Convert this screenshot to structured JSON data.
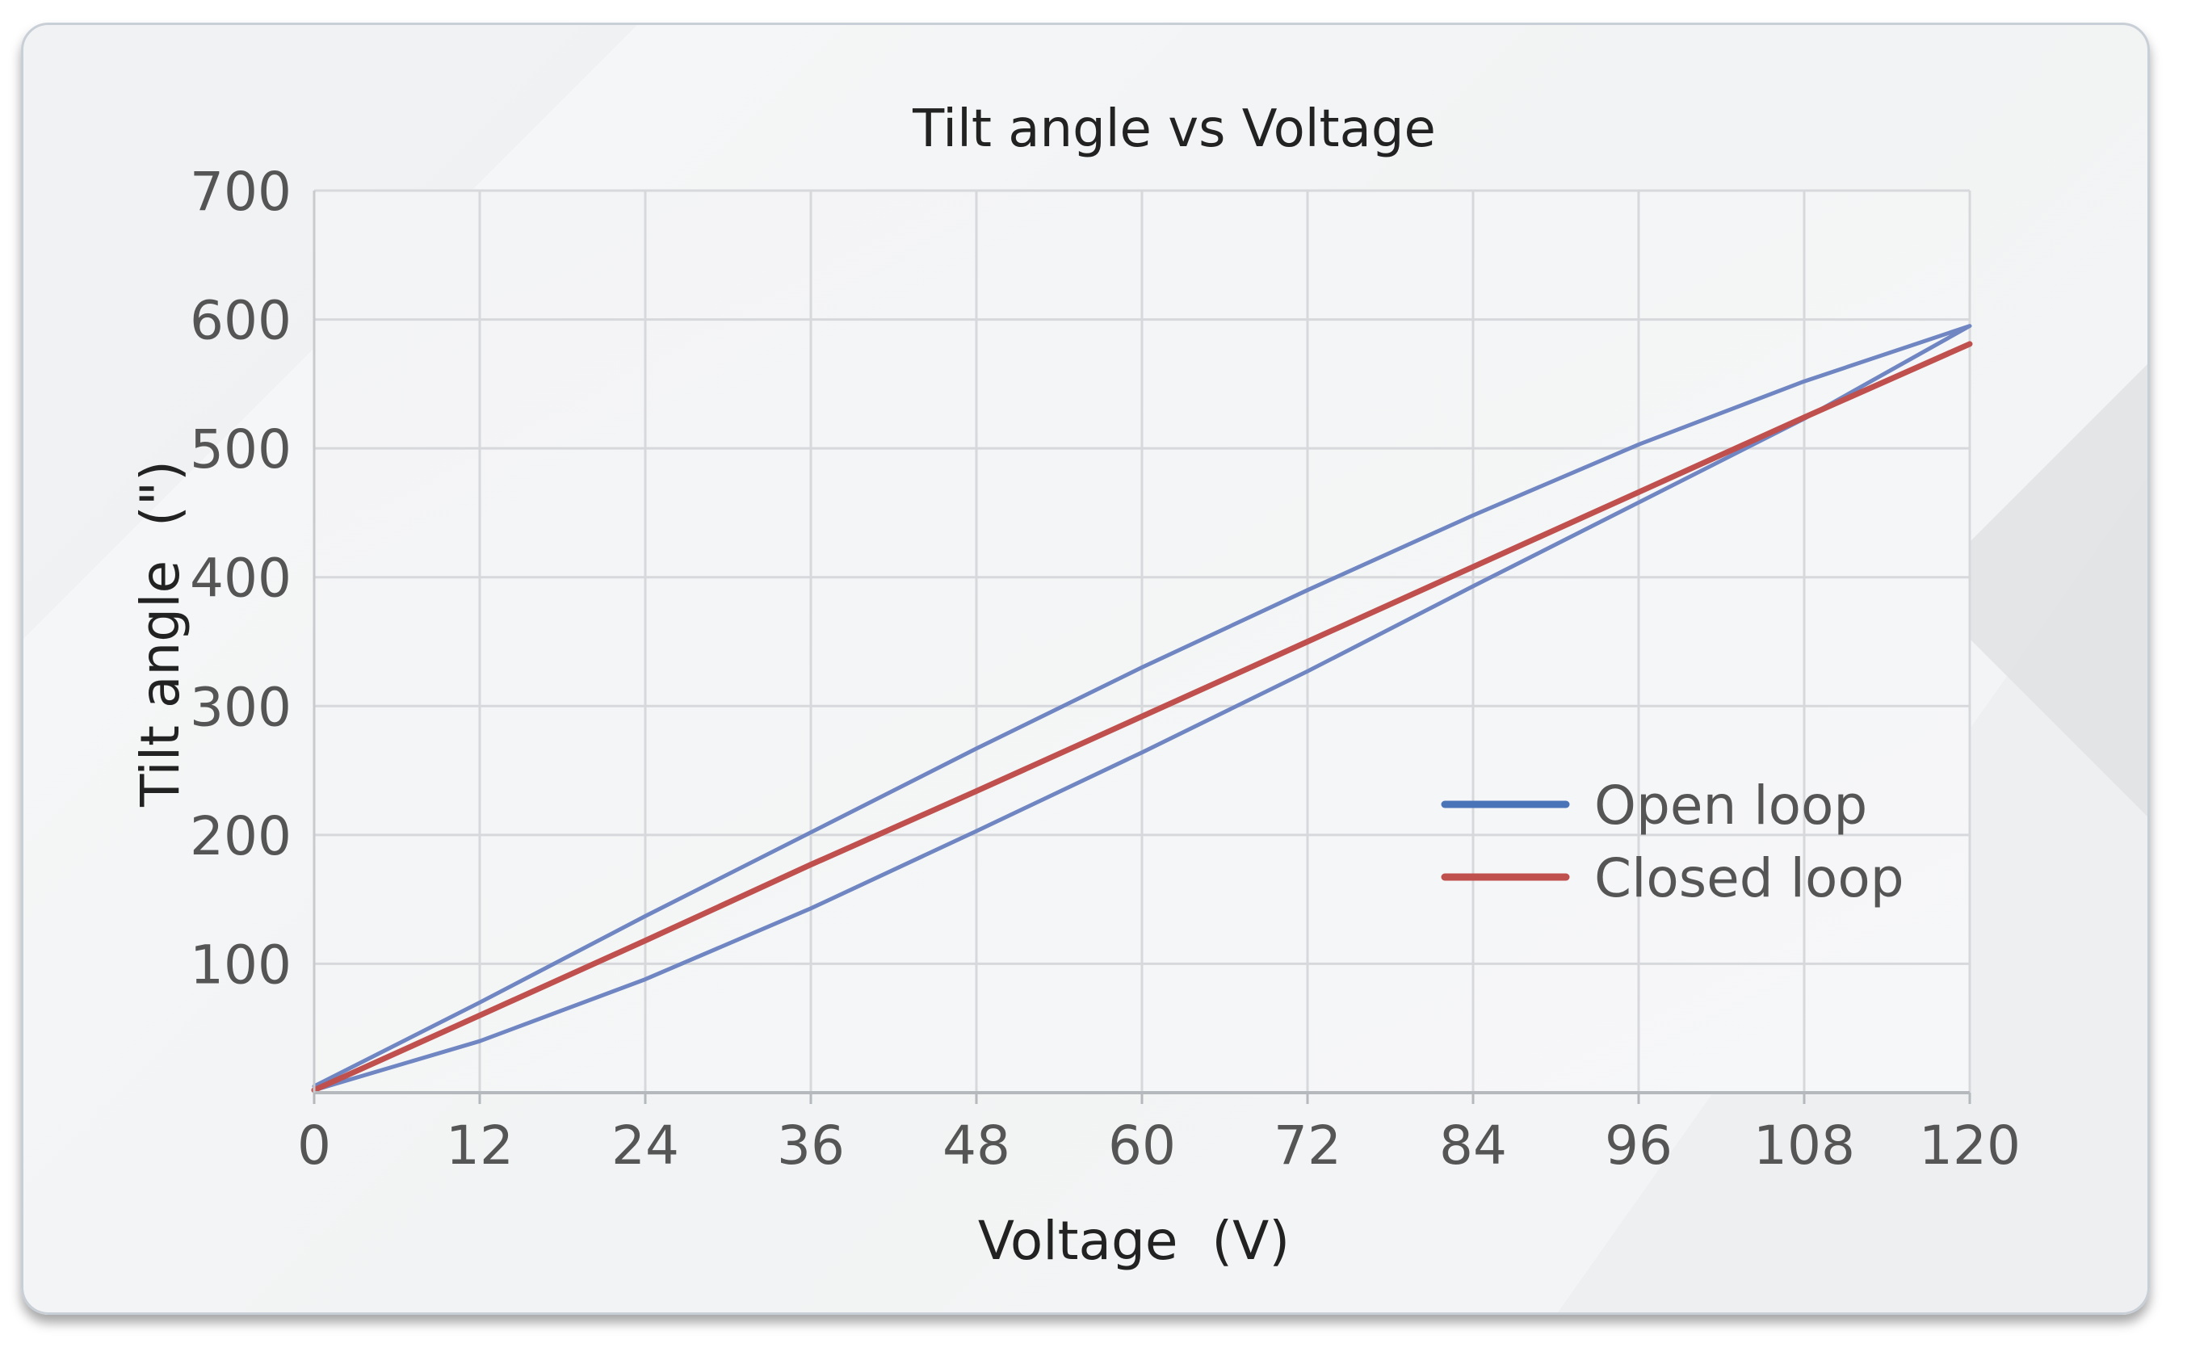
{
  "chart_data": {
    "type": "line",
    "title": "Tilt angle vs Voltage",
    "xlabel": "Voltage  (V)",
    "ylabel": "Tilt angle  (\")",
    "xlim": [
      0,
      120
    ],
    "ylim": [
      0,
      700
    ],
    "xticks": [
      0,
      12,
      24,
      36,
      48,
      60,
      72,
      84,
      96,
      108,
      120
    ],
    "yticks": [
      100,
      200,
      300,
      400,
      500,
      600,
      700
    ],
    "grid": true,
    "legend_position": "bottom-right",
    "series": [
      {
        "name": "Open loop",
        "color": "#6f86c2",
        "legend_color": "#4a74b8",
        "points": [
          [
            0,
            5
          ],
          [
            12,
            70
          ],
          [
            24,
            137
          ],
          [
            36,
            202
          ],
          [
            48,
            267
          ],
          [
            60,
            330
          ],
          [
            72,
            390
          ],
          [
            84,
            448
          ],
          [
            96,
            503
          ],
          [
            108,
            552
          ],
          [
            120,
            595
          ],
          [
            108,
            523
          ],
          [
            96,
            458
          ],
          [
            84,
            393
          ],
          [
            72,
            327
          ],
          [
            60,
            264
          ],
          [
            48,
            203
          ],
          [
            36,
            143
          ],
          [
            24,
            88
          ],
          [
            12,
            40
          ],
          [
            0,
            2
          ]
        ]
      },
      {
        "name": "Closed loop",
        "color": "#c0504d",
        "points": [
          [
            0,
            2
          ],
          [
            12,
            60
          ],
          [
            24,
            118
          ],
          [
            36,
            177
          ],
          [
            48,
            234
          ],
          [
            60,
            292
          ],
          [
            72,
            350
          ],
          [
            84,
            408
          ],
          [
            96,
            466
          ],
          [
            108,
            524
          ],
          [
            120,
            581
          ]
        ]
      }
    ]
  }
}
